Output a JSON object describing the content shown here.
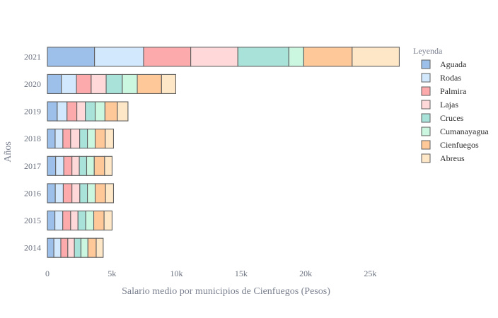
{
  "chart_data": {
    "type": "bar",
    "orientation": "horizontal",
    "barmode": "stack",
    "categories": [
      "2014",
      "2015",
      "2016",
      "2017",
      "2018",
      "2019",
      "2020",
      "2021"
    ],
    "series": [
      {
        "name": "Aguada",
        "color": "#9cc0ea",
        "values": [
          500,
          580,
          610,
          640,
          600,
          760,
          1080,
          3650
        ]
      },
      {
        "name": "Rodas",
        "color": "#d2e8fd",
        "values": [
          540,
          610,
          620,
          630,
          600,
          760,
          1170,
          3800
        ]
      },
      {
        "name": "Palmira",
        "color": "#fcaaac",
        "values": [
          540,
          610,
          670,
          630,
          600,
          760,
          1140,
          3650
        ]
      },
      {
        "name": "Lajas",
        "color": "#ffd9da",
        "values": [
          510,
          570,
          610,
          570,
          700,
          660,
          1160,
          3650
        ]
      },
      {
        "name": "Cruces",
        "color": "#a8e2d8",
        "values": [
          510,
          600,
          590,
          570,
          600,
          760,
          1250,
          3950
        ]
      },
      {
        "name": "Cumanayagua",
        "color": "#cbf6df",
        "values": [
          540,
          620,
          600,
          590,
          600,
          760,
          1160,
          1150
        ]
      },
      {
        "name": "Cienfuegos",
        "color": "#fec898",
        "values": [
          640,
          800,
          800,
          800,
          780,
          960,
          1880,
          3750
        ]
      },
      {
        "name": "Abreus",
        "color": "#fee7c7",
        "values": [
          540,
          620,
          620,
          580,
          640,
          820,
          1100,
          3650
        ]
      }
    ],
    "xlabel": "Salario medio por municipios de Cienfuegos (Pesos)",
    "ylabel": "Años",
    "xlim": [
      0,
      27500
    ],
    "xticks": [
      0,
      5000,
      10000,
      15000,
      20000,
      25000
    ],
    "xtick_labels": [
      "0",
      "5k",
      "10k",
      "15k",
      "20k",
      "25k"
    ],
    "grid": false,
    "legend_title": "Leyenda",
    "legend_position": "right"
  }
}
